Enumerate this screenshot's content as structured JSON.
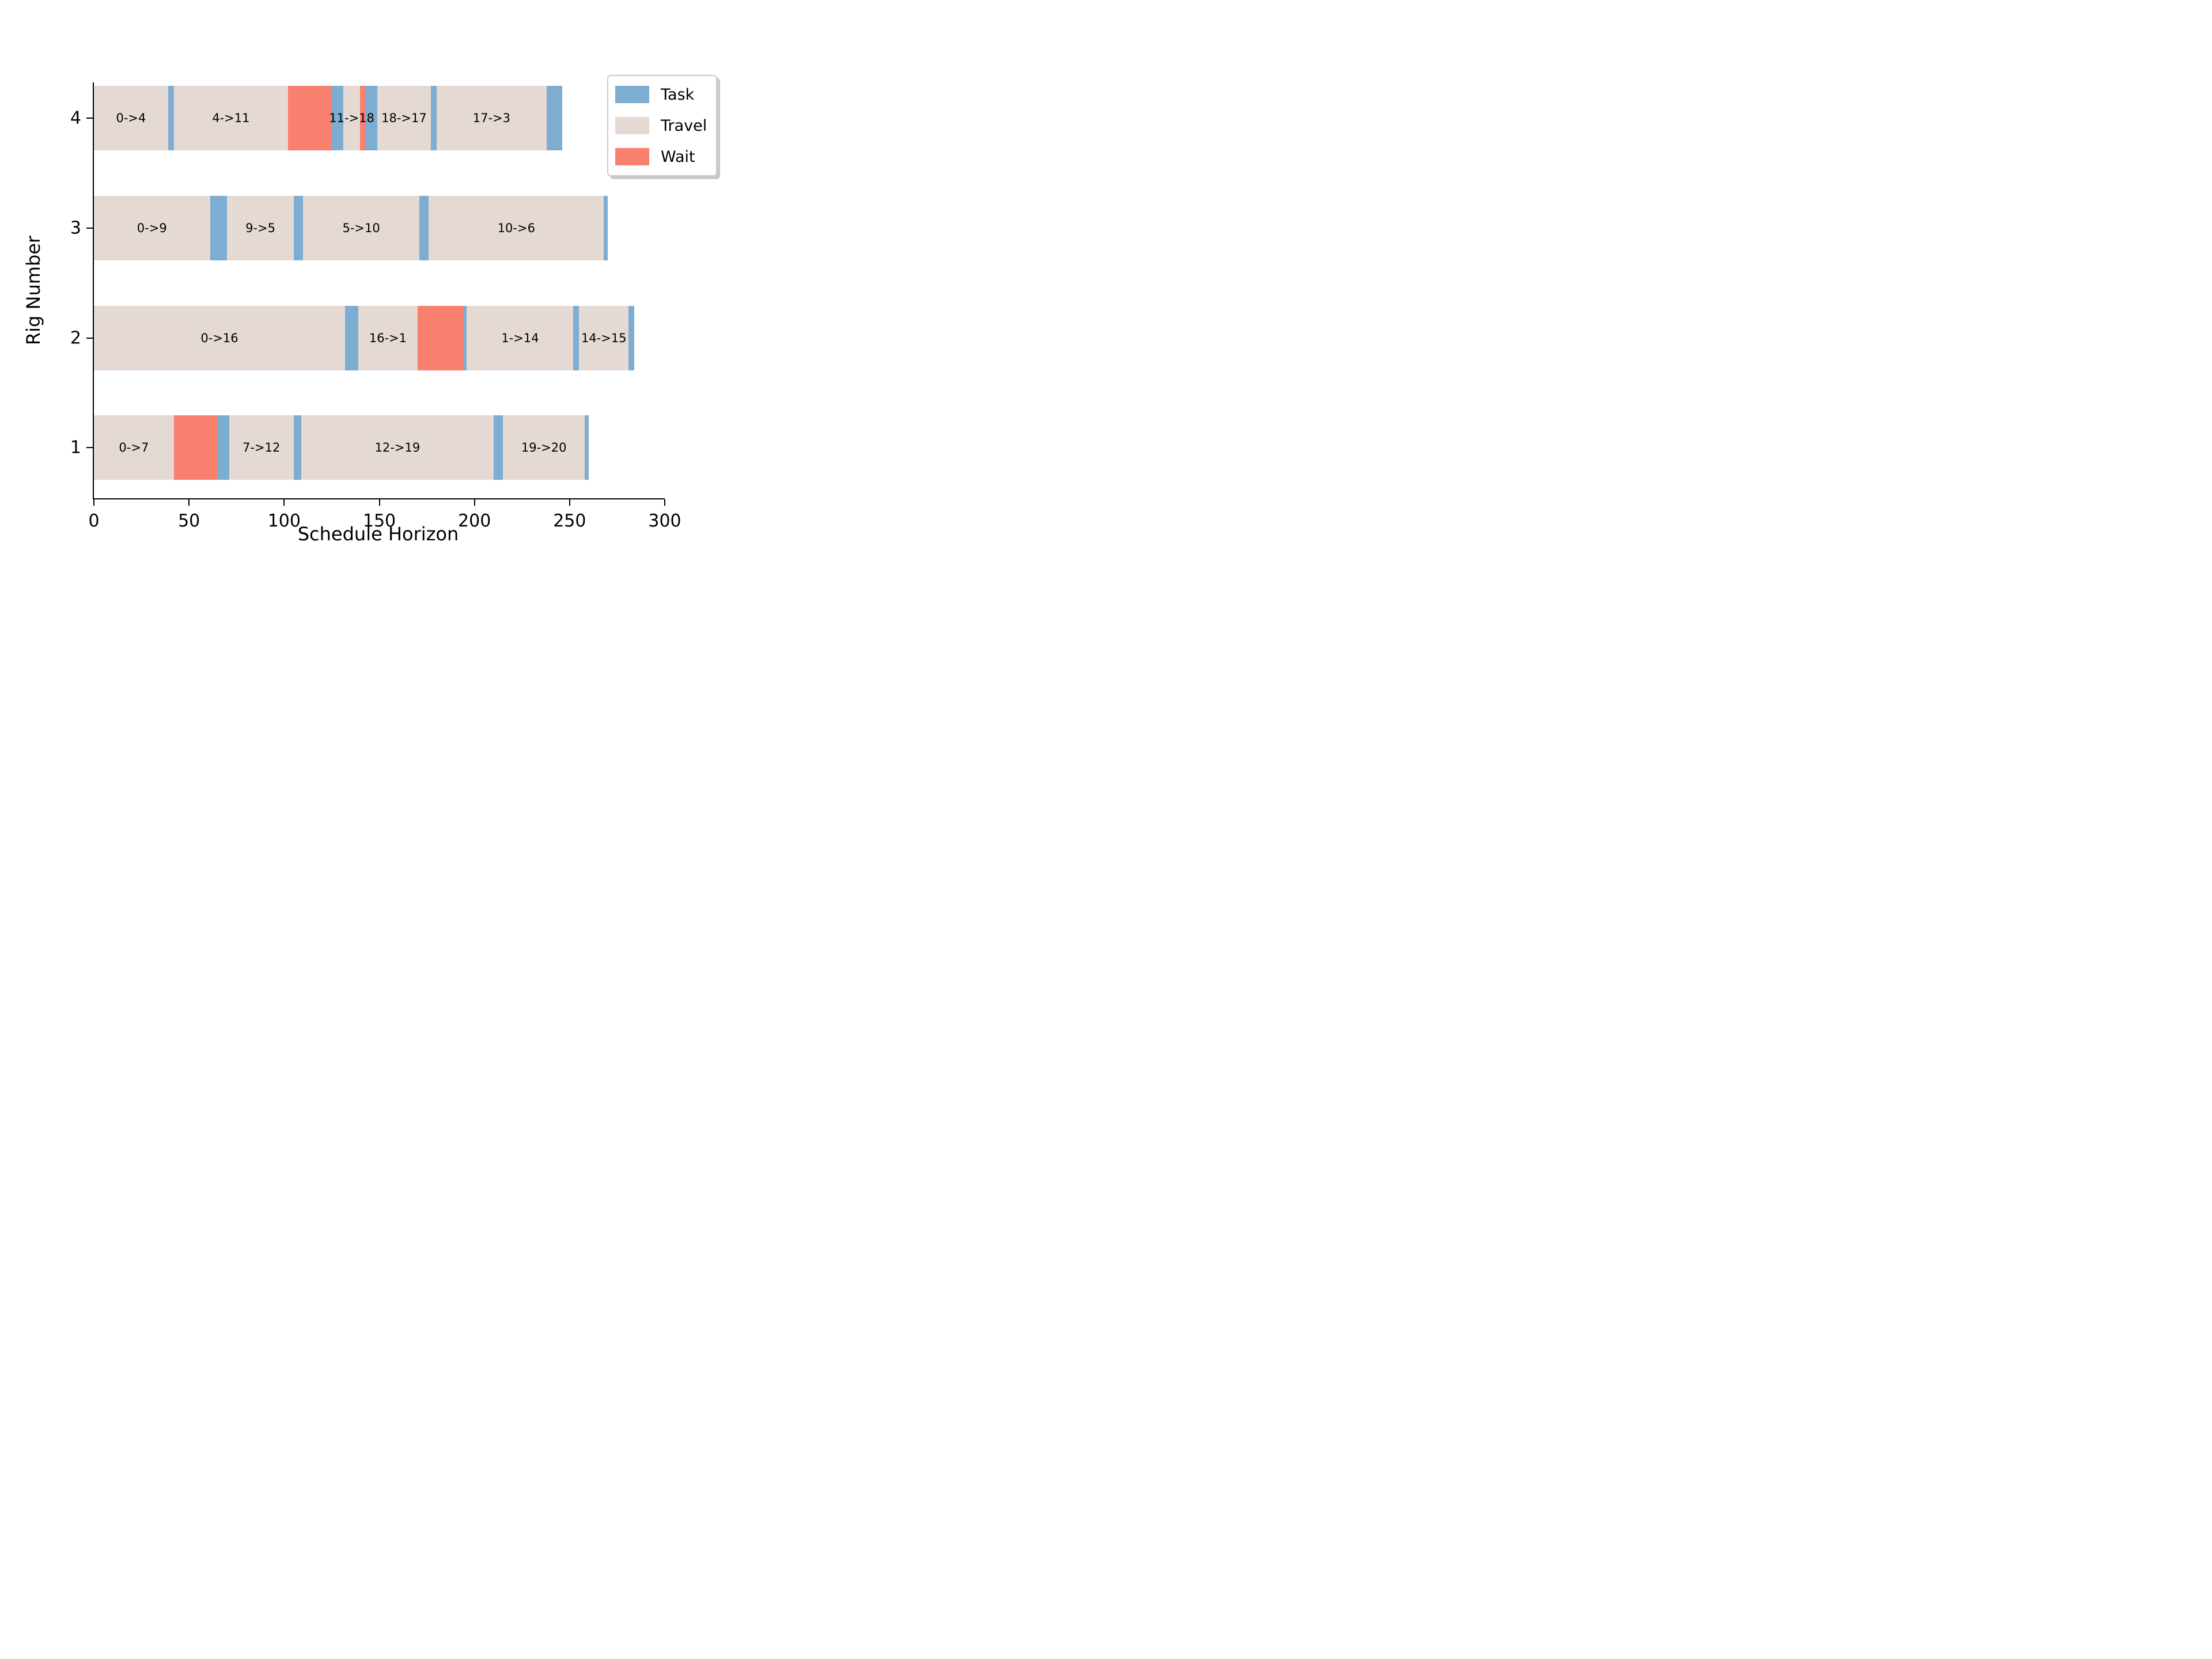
{
  "axes": {
    "xlabel": "Schedule Horizon",
    "ylabel": "Rig Number"
  },
  "colors": {
    "task": "#7DADD0",
    "travel": "#E5DAD3",
    "wait": "#F97F6E",
    "axis": "#000000",
    "background": "#ffffff",
    "legend_border": "#cccccc"
  },
  "legend": {
    "items": [
      {
        "label": "Task",
        "color_key": "task"
      },
      {
        "label": "Travel",
        "color_key": "travel"
      },
      {
        "label": "Wait",
        "color_key": "wait"
      }
    ]
  },
  "chart_data": {
    "type": "gantt",
    "title": "",
    "xlabel": "Schedule Horizon",
    "ylabel": "Rig Number",
    "xlim": [
      0,
      300
    ],
    "xticks": [
      0,
      50,
      100,
      150,
      200,
      250,
      300
    ],
    "yticks": [
      1,
      2,
      3,
      4
    ],
    "grid": false,
    "legend_position": "upper right",
    "legend_entries": [
      "Task",
      "Travel",
      "Wait"
    ],
    "rigs": [
      {
        "rig": 4,
        "segments": [
          {
            "kind": "travel",
            "label": "0->4",
            "start": 0,
            "end": 39
          },
          {
            "kind": "task",
            "label": "",
            "start": 39,
            "end": 42
          },
          {
            "kind": "travel",
            "label": "4->11",
            "start": 42,
            "end": 102
          },
          {
            "kind": "wait",
            "label": "",
            "start": 102,
            "end": 125
          },
          {
            "kind": "task",
            "label": "",
            "start": 125,
            "end": 131
          },
          {
            "kind": "travel",
            "label": "11->18",
            "start": 131,
            "end": 140
          },
          {
            "kind": "wait",
            "label": "",
            "start": 140,
            "end": 143
          },
          {
            "kind": "task",
            "label": "",
            "start": 143,
            "end": 149
          },
          {
            "kind": "travel",
            "label": "18->17",
            "start": 149,
            "end": 177
          },
          {
            "kind": "task",
            "label": "",
            "start": 177,
            "end": 180
          },
          {
            "kind": "travel",
            "label": "17->3",
            "start": 180,
            "end": 238
          },
          {
            "kind": "task",
            "label": "",
            "start": 238,
            "end": 246
          }
        ]
      },
      {
        "rig": 3,
        "segments": [
          {
            "kind": "travel",
            "label": "0->9",
            "start": 0,
            "end": 61
          },
          {
            "kind": "task",
            "label": "",
            "start": 61,
            "end": 70
          },
          {
            "kind": "travel",
            "label": "9->5",
            "start": 70,
            "end": 105
          },
          {
            "kind": "task",
            "label": "",
            "start": 105,
            "end": 110
          },
          {
            "kind": "travel",
            "label": "5->10",
            "start": 110,
            "end": 171
          },
          {
            "kind": "task",
            "label": "",
            "start": 171,
            "end": 176
          },
          {
            "kind": "travel",
            "label": "10->6",
            "start": 176,
            "end": 268
          },
          {
            "kind": "task",
            "label": "",
            "start": 268,
            "end": 270
          }
        ]
      },
      {
        "rig": 2,
        "segments": [
          {
            "kind": "travel",
            "label": "0->16",
            "start": 0,
            "end": 132
          },
          {
            "kind": "task",
            "label": "",
            "start": 132,
            "end": 139
          },
          {
            "kind": "travel",
            "label": "16->1",
            "start": 139,
            "end": 170
          },
          {
            "kind": "wait",
            "label": "",
            "start": 170,
            "end": 194
          },
          {
            "kind": "task",
            "label": "",
            "start": 194,
            "end": 196
          },
          {
            "kind": "travel",
            "label": "1->14",
            "start": 196,
            "end": 252
          },
          {
            "kind": "task",
            "label": "",
            "start": 252,
            "end": 255
          },
          {
            "kind": "travel",
            "label": "14->15",
            "start": 255,
            "end": 281
          },
          {
            "kind": "task",
            "label": "",
            "start": 281,
            "end": 284
          }
        ]
      },
      {
        "rig": 1,
        "segments": [
          {
            "kind": "travel",
            "label": "0->7",
            "start": 0,
            "end": 42
          },
          {
            "kind": "wait",
            "label": "",
            "start": 42,
            "end": 65
          },
          {
            "kind": "task",
            "label": "",
            "start": 65,
            "end": 71
          },
          {
            "kind": "travel",
            "label": "7->12",
            "start": 71,
            "end": 105
          },
          {
            "kind": "task",
            "label": "",
            "start": 105,
            "end": 109
          },
          {
            "kind": "travel",
            "label": "12->19",
            "start": 109,
            "end": 210
          },
          {
            "kind": "task",
            "label": "",
            "start": 210,
            "end": 215
          },
          {
            "kind": "travel",
            "label": "19->20",
            "start": 215,
            "end": 258
          },
          {
            "kind": "task",
            "label": "",
            "start": 258,
            "end": 260
          }
        ]
      }
    ]
  }
}
